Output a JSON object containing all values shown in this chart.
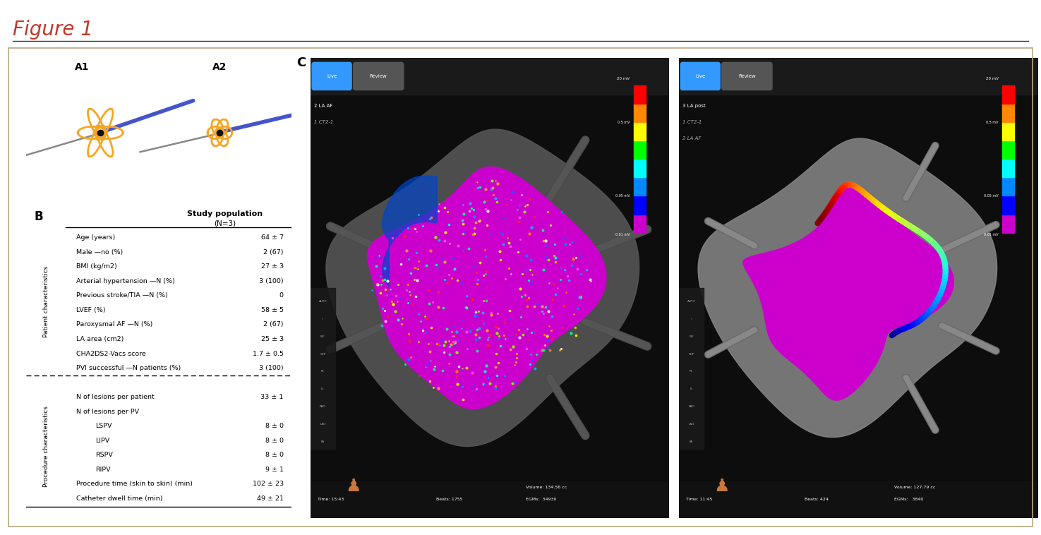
{
  "figure_title": "Figure 1",
  "title_color": "#c0392b",
  "col_header": "Study population",
  "col_subheader": "(N=3)",
  "patient_rows": [
    [
      "Age (years)",
      "64 ± 7"
    ],
    [
      "Male —no (%)",
      "2 (67)"
    ],
    [
      "BMI (kg/m2)",
      "27 ± 3"
    ],
    [
      "Arterial hypertension —N (%)",
      "3 (100)"
    ],
    [
      "Previous stroke/TIA —N (%)",
      "0"
    ],
    [
      "LVEF (%)",
      "58 ± 5"
    ],
    [
      "Paroxysmal AF —N (%)",
      "2 (67)"
    ],
    [
      "LA area (cm2)",
      "25 ± 3"
    ],
    [
      "CHA2DS2-Vacs score",
      "1.7 ± 0.5"
    ],
    [
      "PVI successful —N patients (%)",
      "3 (100)"
    ]
  ],
  "patient_section_label": "Patient characteristics",
  "procedure_rows": [
    [
      "N of lesions per patient",
      "33 ± 1"
    ],
    [
      "N of lesions per PV",
      ""
    ],
    [
      "LSPV",
      "8 ± 0"
    ],
    [
      "LIPV",
      "8 ± 0"
    ],
    [
      "RSPV",
      "8 ± 0"
    ],
    [
      "RIPV",
      "9 ± 1"
    ],
    [
      "Procedure time (skin to skin) (min)",
      "102 ± 23"
    ],
    [
      "Catheter dwell time (min)",
      "49 ± 21"
    ]
  ],
  "procedure_section_label": "Procedure characteristics",
  "background_color": "#ffffff",
  "border_color": "#b8a882",
  "title_line_color": "#333333",
  "panel_bg": "#0e0e0e"
}
